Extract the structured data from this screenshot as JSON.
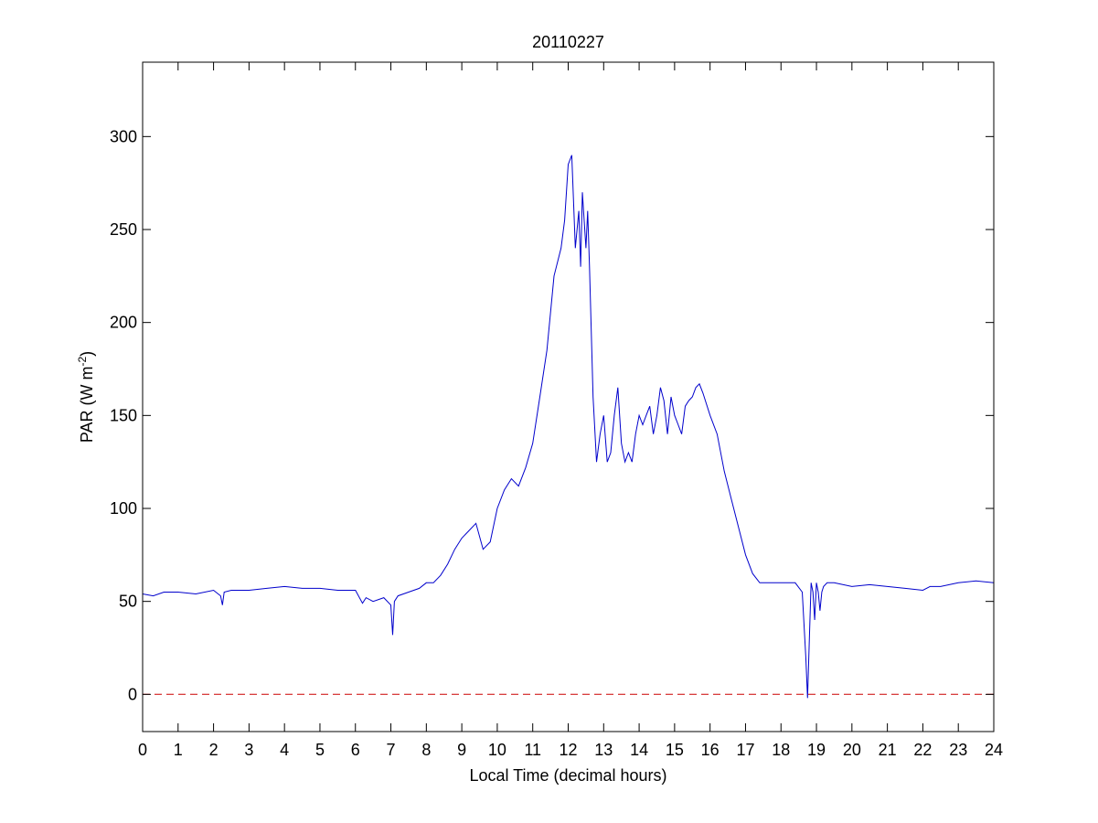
{
  "chart_data": {
    "type": "line",
    "title": "20110227",
    "xlabel": "Local Time (decimal hours)",
    "ylabel": {
      "main": "PAR (W m",
      "superscript": "-2",
      "close": ")"
    },
    "xlim": [
      0,
      24
    ],
    "ylim": [
      -20,
      340
    ],
    "xticks": [
      0,
      1,
      2,
      3,
      4,
      5,
      6,
      7,
      8,
      9,
      10,
      11,
      12,
      13,
      14,
      15,
      16,
      17,
      18,
      19,
      20,
      21,
      22,
      23,
      24
    ],
    "yticks": [
      0,
      50,
      100,
      150,
      200,
      250,
      300
    ],
    "grid": false,
    "series": [
      {
        "color": "#0000cc",
        "x": [
          0,
          0.3,
          0.6,
          1.0,
          1.5,
          2.0,
          2.2,
          2.25,
          2.3,
          2.5,
          3.0,
          3.5,
          4.0,
          4.5,
          5.0,
          5.5,
          6.0,
          6.2,
          6.3,
          6.5,
          6.8,
          7.0,
          7.05,
          7.1,
          7.2,
          7.5,
          7.8,
          8.0,
          8.2,
          8.4,
          8.6,
          8.8,
          9.0,
          9.2,
          9.4,
          9.5,
          9.6,
          9.8,
          10.0,
          10.2,
          10.4,
          10.6,
          10.8,
          11.0,
          11.2,
          11.4,
          11.6,
          11.8,
          11.9,
          12.0,
          12.1,
          12.2,
          12.3,
          12.35,
          12.4,
          12.5,
          12.55,
          12.6,
          12.7,
          12.8,
          12.9,
          13.0,
          13.1,
          13.2,
          13.3,
          13.4,
          13.5,
          13.6,
          13.7,
          13.8,
          13.9,
          14.0,
          14.1,
          14.2,
          14.3,
          14.4,
          14.5,
          14.6,
          14.7,
          14.8,
          14.9,
          15.0,
          15.1,
          15.2,
          15.3,
          15.4,
          15.5,
          15.6,
          15.7,
          15.8,
          16.0,
          16.2,
          16.4,
          16.6,
          16.8,
          17.0,
          17.2,
          17.4,
          17.6,
          17.8,
          18.0,
          18.2,
          18.4,
          18.6,
          18.7,
          18.75,
          18.8,
          18.85,
          18.9,
          18.95,
          19.0,
          19.05,
          19.1,
          19.15,
          19.2,
          19.3,
          19.5,
          20.0,
          20.5,
          21.0,
          21.5,
          22.0,
          22.2,
          22.5,
          23.0,
          23.5,
          24.0
        ],
        "y": [
          54,
          53,
          55,
          55,
          54,
          56,
          53,
          48,
          55,
          56,
          56,
          57,
          58,
          57,
          57,
          56,
          56,
          49,
          52,
          50,
          52,
          48,
          32,
          50,
          53,
          55,
          57,
          60,
          60,
          64,
          70,
          78,
          84,
          88,
          92,
          85,
          78,
          82,
          100,
          110,
          116,
          112,
          122,
          135,
          160,
          185,
          225,
          240,
          255,
          285,
          290,
          240,
          260,
          230,
          270,
          240,
          260,
          230,
          160,
          125,
          140,
          150,
          125,
          130,
          150,
          165,
          135,
          125,
          130,
          125,
          140,
          150,
          145,
          150,
          155,
          140,
          150,
          165,
          158,
          140,
          160,
          150,
          145,
          140,
          155,
          158,
          160,
          165,
          167,
          162,
          150,
          140,
          120,
          105,
          90,
          75,
          65,
          60,
          60,
          60,
          60,
          60,
          60,
          55,
          20,
          -2,
          30,
          60,
          55,
          40,
          60,
          55,
          45,
          55,
          58,
          60,
          60,
          58,
          59,
          58,
          57,
          56,
          58,
          58,
          60,
          61,
          60
        ]
      },
      {
        "color": "#cc0000",
        "style": "dashed",
        "x": [
          0,
          24
        ],
        "y": [
          0,
          0
        ]
      }
    ]
  }
}
